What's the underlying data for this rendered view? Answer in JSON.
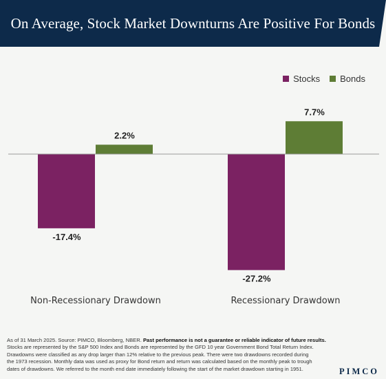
{
  "header": {
    "title": "On Average, Stock Market Downturns Are Positive For Bonds"
  },
  "chart_data": {
    "type": "bar",
    "categories": [
      "Non-Recessionary Drawdown",
      "Recessionary Drawdown"
    ],
    "series": [
      {
        "name": "Stocks",
        "values": [
          -17.4,
          -27.2
        ],
        "labels": [
          "-17.4%",
          "-27.2%"
        ],
        "color": "#7b2262"
      },
      {
        "name": "Bonds",
        "values": [
          2.2,
          7.7
        ],
        "labels": [
          "2.2%",
          "7.7%"
        ],
        "color": "#5e7d35"
      }
    ],
    "title": "On Average, Stock Market Downturns Are Positive For Bonds",
    "xlabel": "",
    "ylabel": "",
    "ylim": [
      -30,
      10
    ],
    "grid": false,
    "legend": "top-right"
  },
  "footnote": {
    "lead": "As of 31 March 2025. Source: PIMCO, Bloomberg, NBER.",
    "bold": "Past performance is not a guarantee or reliable indicator of future results.",
    "line2": "Stocks are represented by the S&P 500 Index and Bonds are represented by the GFD 10 year Government Bond Total Return Index.",
    "line3": "Drawdowns were classified as any drop larger than 12% relative to the previous peak. There were two drawdowns recorded during",
    "line4": "the 1973 recession. Monthly data was used as proxy for Bond return and return was calculated based on the monthly peak to trough",
    "line5": "dates of drawdowns. We referred to the month end date immediately following the start of the market drawdown starting in 1951."
  },
  "logo": {
    "text": "PIMCO"
  }
}
